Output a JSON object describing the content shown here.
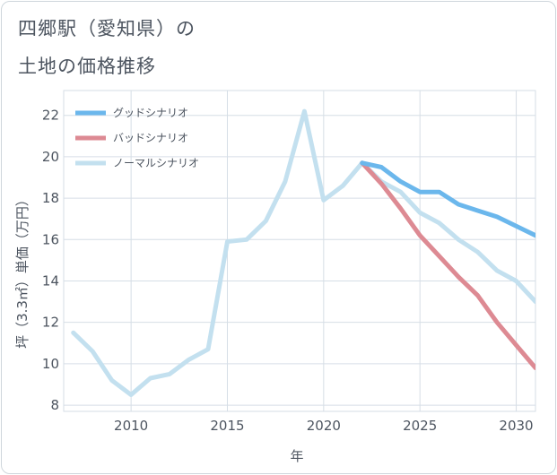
{
  "title_line1": "四郷駅（愛知県）の",
  "title_line2": "土地の価格推移",
  "chart_data": {
    "type": "line",
    "xlabel": "年",
    "ylabel": "坪（3.3㎡）単価（万円）",
    "xlim": [
      2006.5,
      2031
    ],
    "ylim": [
      7.7,
      23.2
    ],
    "xticks": [
      2010,
      2015,
      2020,
      2025,
      2030
    ],
    "yticks": [
      8,
      10,
      12,
      14,
      16,
      18,
      20,
      22
    ],
    "grid": true,
    "legend_position": "top-left",
    "series": [
      {
        "name": "グッドシナリオ",
        "color": "#6bb7ec",
        "x": [
          2022,
          2023,
          2024,
          2025,
          2026,
          2027,
          2028,
          2029,
          2030,
          2031
        ],
        "values": [
          19.7,
          19.5,
          18.8,
          18.3,
          18.3,
          17.7,
          17.4,
          17.1,
          16.65,
          16.2
        ]
      },
      {
        "name": "バッドシナリオ",
        "color": "#dd8a93",
        "x": [
          2022,
          2023,
          2024,
          2025,
          2026,
          2027,
          2028,
          2029,
          2030,
          2031
        ],
        "values": [
          19.7,
          18.7,
          17.5,
          16.2,
          15.2,
          14.2,
          13.3,
          12.0,
          10.9,
          9.8
        ]
      },
      {
        "name": "ノーマルシナリオ",
        "color": "#c3e0ef",
        "x": [
          2007,
          2008,
          2009,
          2010,
          2011,
          2012,
          2013,
          2014,
          2015,
          2016,
          2017,
          2018,
          2019,
          2020,
          2021,
          2022,
          2023,
          2024,
          2025,
          2026,
          2027,
          2028,
          2029,
          2030,
          2031
        ],
        "values": [
          11.5,
          10.6,
          9.2,
          8.5,
          9.3,
          9.5,
          10.2,
          10.7,
          15.9,
          16.0,
          16.9,
          18.8,
          22.2,
          17.9,
          18.6,
          19.7,
          18.8,
          18.3,
          17.3,
          16.8,
          16.0,
          15.4,
          14.5,
          14.0,
          13.0
        ]
      }
    ]
  }
}
